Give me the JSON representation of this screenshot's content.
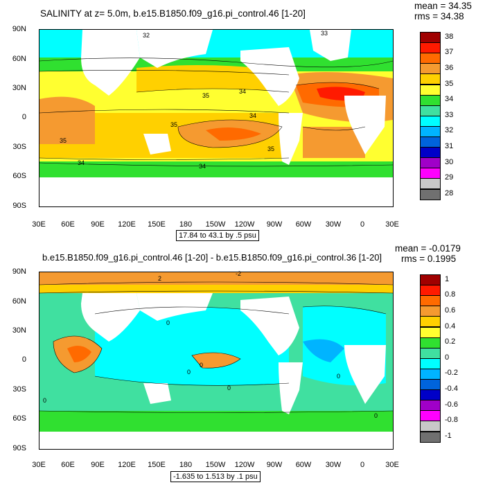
{
  "panel1": {
    "title": "SALINITY at z=   5.0m, b.e15.B1850.f09_g16.pi_control.46 [1-20]",
    "mean": "mean = 34.35",
    "rms": "rms = 34.38",
    "range": "17.84 to 43.1 by .5 psu",
    "lat_labels": [
      "90N",
      "60N",
      "30N",
      "0",
      "30S",
      "60S",
      "90S"
    ],
    "lon_labels": [
      "30E",
      "60E",
      "90E",
      "120E",
      "150E",
      "180",
      "150W",
      "120W",
      "90W",
      "60W",
      "30W",
      "0",
      "30E"
    ],
    "contour_labels": [
      "32",
      "33",
      "35",
      "34",
      "34",
      "35",
      "35",
      "35",
      "34",
      "34"
    ],
    "colorbar": {
      "labels": [
        "38",
        "37",
        "36",
        "35",
        "34",
        "33",
        "32",
        "31",
        "30",
        "29",
        "28"
      ],
      "colors": [
        "#a00000",
        "#ff1a00",
        "#ff6a00",
        "#f59a30",
        "#ffd000",
        "#ffff30",
        "#30e030",
        "#40e0a0",
        "#00ffff",
        "#00b4ff",
        "#0064dc",
        "#0000c8",
        "#a000c8",
        "#ff00ff",
        "#c8c8c8",
        "#707070"
      ]
    }
  },
  "panel2": {
    "title": "b.e15.B1850.f09_g16.pi_control.46 [1-20] - b.e15.B1850.f09_g16.pi_control.36 [1-20]",
    "mean": "mean = -0.0179",
    "rms": "rms = 0.1995",
    "range": "-1.635 to 1.513 by .1 psu",
    "lat_labels": [
      "90N",
      "60N",
      "30N",
      "0",
      "30S",
      "60S",
      "90S"
    ],
    "lon_labels": [
      "30E",
      "60E",
      "90E",
      "120E",
      "150E",
      "180",
      "150W",
      "120W",
      "90W",
      "60W",
      "30W",
      "0",
      "30E"
    ],
    "contour_labels": [
      "2",
      "-2",
      "0",
      "0",
      "0",
      "0",
      "0",
      "0",
      "0"
    ],
    "colorbar": {
      "labels": [
        "1",
        "0.8",
        "0.6",
        "0.4",
        "0.2",
        "0",
        "-0.2",
        "-0.4",
        "-0.6",
        "-0.8",
        "-1"
      ],
      "colors": [
        "#a00000",
        "#ff1a00",
        "#ff6a00",
        "#f59a30",
        "#ffd000",
        "#ffff30",
        "#30e030",
        "#40e0a0",
        "#00ffff",
        "#00b4ff",
        "#0064dc",
        "#0000c8",
        "#a000c8",
        "#ff00ff",
        "#c8c8c8",
        "#707070"
      ]
    }
  }
}
